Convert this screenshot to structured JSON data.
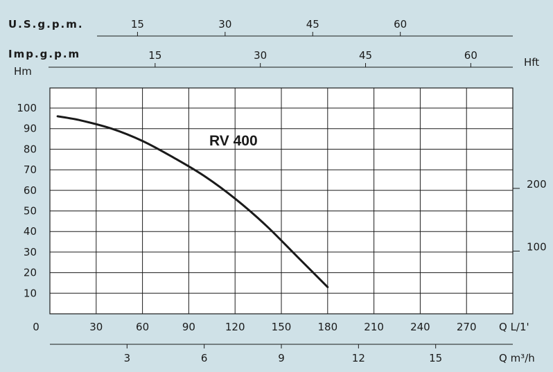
{
  "chart_data": {
    "type": "line",
    "series_label": "RV 400",
    "x_label": "Q L/1'",
    "x_ticks": [
      0,
      30,
      60,
      90,
      120,
      150,
      180,
      210,
      240,
      270
    ],
    "xlim": [
      0,
      300
    ],
    "y_label": "Hm",
    "y_ticks": [
      10,
      20,
      30,
      40,
      50,
      60,
      70,
      80,
      90,
      100
    ],
    "ylim": [
      0,
      110
    ],
    "grid": true,
    "series": [
      {
        "x": [
          5,
          20,
          40,
          60,
          80,
          100,
          120,
          140,
          160,
          180
        ],
        "y": [
          96,
          94,
          90,
          84,
          76,
          67,
          56,
          43,
          28,
          13
        ]
      }
    ],
    "secondary_axes": {
      "us_gpm": {
        "label": "U.S.g.p.m.",
        "ticks": [
          15,
          30,
          45,
          60
        ],
        "lpm_per_unit": 3.785
      },
      "imp_gpm": {
        "label": "Imp.g.p.m",
        "ticks": [
          15,
          30,
          45,
          60
        ],
        "lpm_per_unit": 4.546
      },
      "m3h": {
        "label": "Q m³/h",
        "ticks": [
          3,
          6,
          9,
          12,
          15
        ],
        "lpm_per_unit": 16.667
      },
      "hft": {
        "label": "Hft",
        "ticks": [
          100,
          200
        ],
        "m_per_unit": 0.3048
      }
    },
    "colors": {
      "background": "#cfe1e7",
      "plot_area": "#ffffff",
      "line": "#1a1a1a"
    }
  }
}
